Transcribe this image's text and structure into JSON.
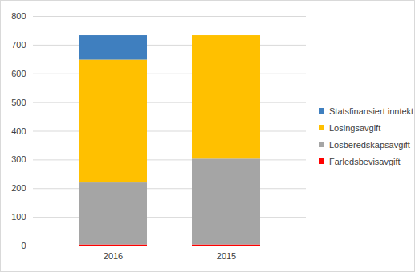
{
  "chart_data": {
    "type": "bar",
    "stacked": true,
    "categories": [
      "2016",
      "2015"
    ],
    "series": [
      {
        "name": "Farledsbevisavgift",
        "color": "#ff0000",
        "values": [
          4,
          4
        ]
      },
      {
        "name": "Losberedskapsavgift",
        "color": "#a5a5a5",
        "values": [
          216,
          299
        ]
      },
      {
        "name": "Losingsavgift",
        "color": "#ffc000",
        "values": [
          428,
          430
        ]
      },
      {
        "name": "Statsfinansiert inntekt",
        "color": "#3f7fbf",
        "values": [
          85,
          0
        ]
      }
    ],
    "ylim": [
      0,
      800
    ],
    "yticks": [
      0,
      100,
      200,
      300,
      400,
      500,
      600,
      700,
      800
    ],
    "grid": true,
    "legend": "right"
  }
}
